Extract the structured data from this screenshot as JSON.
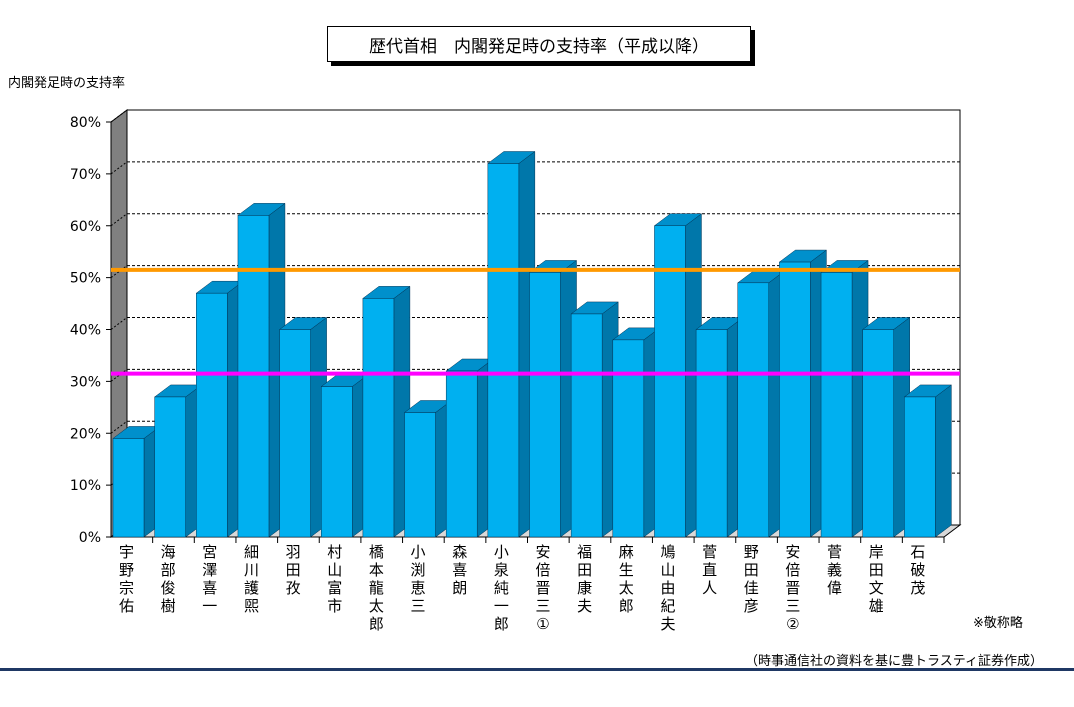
{
  "page": {
    "note": "※敬称略",
    "source": "（時事通信社の資料を基に豊トラスティ証券作成）"
  },
  "chart_data": {
    "type": "bar",
    "title": "歴代首相　内閣発足時の支持率（平成以降）",
    "ylabel": "内閣発足時の支持率",
    "xlabel": "",
    "ylim": [
      0,
      80
    ],
    "yticks": [
      "0%",
      "10%",
      "20%",
      "30%",
      "40%",
      "50%",
      "60%",
      "70%",
      "80%"
    ],
    "grid": true,
    "categories": [
      "宇野宗佑",
      "海部俊樹",
      "宮澤喜一",
      "細川護煕",
      "羽田孜",
      "村山富市",
      "橋本龍太郎",
      "小渕恵三",
      "森喜朗",
      "小泉純一郎",
      "安倍晋三①",
      "福田康夫",
      "麻生太郎",
      "鳩山由紀夫",
      "菅直人",
      "野田佳彦",
      "安倍晋三②",
      "菅義偉",
      "岸田文雄",
      "石破茂"
    ],
    "values": [
      19,
      27,
      47,
      62,
      40,
      29,
      46,
      24,
      32,
      72,
      51,
      43,
      38,
      60,
      40,
      49,
      53,
      51,
      40,
      27
    ],
    "reference_lines": [
      {
        "value": 51.5,
        "color": "#ff9900"
      },
      {
        "value": 31.5,
        "color": "#ff00ff"
      }
    ],
    "colors": {
      "bar_front": "#00b0f0",
      "bar_side": "#0077aa",
      "bar_top": "#0090cc",
      "wall": "#808080"
    }
  }
}
